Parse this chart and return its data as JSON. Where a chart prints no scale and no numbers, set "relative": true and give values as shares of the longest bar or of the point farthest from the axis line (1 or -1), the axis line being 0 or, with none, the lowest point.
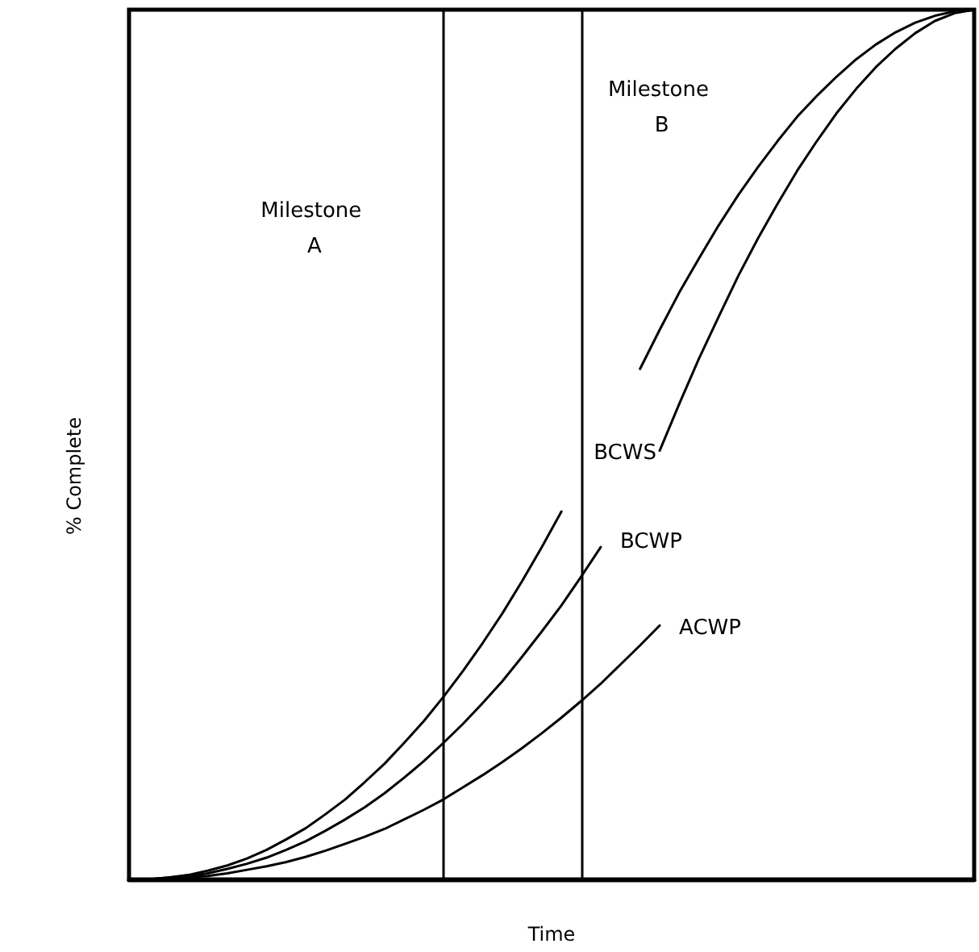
{
  "chart_data": {
    "type": "line",
    "relative": true,
    "xlabel": "Time",
    "ylabel": "% Complete",
    "legend": false,
    "grid": false,
    "marker": "none",
    "line_style": "solid",
    "categories": [
      null,
      null,
      null,
      null,
      null,
      null,
      null,
      null,
      null,
      null,
      null,
      null,
      null,
      null,
      null,
      null,
      null,
      null,
      null,
      null,
      null,
      null,
      null,
      null,
      null,
      null,
      null,
      null,
      null,
      null,
      null,
      null,
      null,
      null,
      null,
      null,
      null,
      null,
      null,
      null,
      null,
      null,
      null,
      null
    ],
    "annotations": [
      "Milestone A",
      "Milestone B"
    ],
    "series": [
      {
        "name": "BCWS",
        "color": "#000000",
        "values": [
          0,
          0,
          0.002,
          0.005,
          0.01,
          0.016,
          0.024,
          0.034,
          0.046,
          0.059,
          0.075,
          0.092,
          0.112,
          0.133,
          0.157,
          0.182,
          0.21,
          0.24,
          0.272,
          0.306,
          0.343,
          0.382,
          0.423,
          null,
          null,
          null,
          null,
          null,
          null,
          null,
          null,
          null,
          null,
          null,
          null,
          null,
          null,
          null,
          null,
          null,
          null,
          null,
          null,
          null
        ]
      },
      {
        "name": "BCWP",
        "color": "#000000",
        "values": [
          0,
          0,
          0.002,
          0.004,
          0.007,
          0.012,
          0.018,
          0.025,
          0.034,
          0.044,
          0.056,
          0.069,
          0.083,
          0.099,
          0.117,
          0.136,
          0.157,
          0.179,
          0.203,
          0.228,
          0.256,
          0.285,
          0.315,
          0.348,
          0.382,
          null,
          null,
          null,
          null,
          null,
          null,
          null,
          null,
          null,
          null,
          null,
          null,
          null,
          null,
          null,
          null,
          null,
          null,
          null
        ]
      },
      {
        "name": "ACWP",
        "color": "#000000",
        "values": [
          0,
          0,
          0.001,
          0.002,
          0.004,
          0.007,
          0.011,
          0.015,
          0.02,
          0.026,
          0.033,
          0.041,
          0.049,
          0.058,
          0.069,
          0.08,
          0.092,
          0.106,
          0.12,
          0.135,
          0.151,
          0.168,
          0.186,
          0.205,
          0.225,
          0.247,
          0.269,
          0.292,
          null,
          null,
          null,
          null,
          null,
          null,
          null,
          null,
          null,
          null,
          null,
          null,
          null,
          null,
          null,
          null
        ]
      },
      {
        "color": "#000000",
        "values": [
          null,
          null,
          null,
          null,
          null,
          null,
          null,
          null,
          null,
          null,
          null,
          null,
          null,
          null,
          null,
          null,
          null,
          null,
          null,
          null,
          null,
          null,
          null,
          null,
          null,
          null,
          0.587,
          0.632,
          0.675,
          0.714,
          0.752,
          0.787,
          0.819,
          0.849,
          0.877,
          0.901,
          0.923,
          0.943,
          0.96,
          0.974,
          0.985,
          0.993,
          0.998,
          1.0
        ]
      },
      {
        "color": "#000000",
        "values": [
          null,
          null,
          null,
          null,
          null,
          null,
          null,
          null,
          null,
          null,
          null,
          null,
          null,
          null,
          null,
          null,
          null,
          null,
          null,
          null,
          null,
          null,
          null,
          null,
          null,
          null,
          null,
          0.493,
          0.547,
          0.599,
          0.647,
          0.694,
          0.737,
          0.777,
          0.815,
          0.849,
          0.881,
          0.909,
          0.934,
          0.955,
          0.973,
          0.987,
          0.996,
          1.0
        ]
      }
    ]
  }
}
